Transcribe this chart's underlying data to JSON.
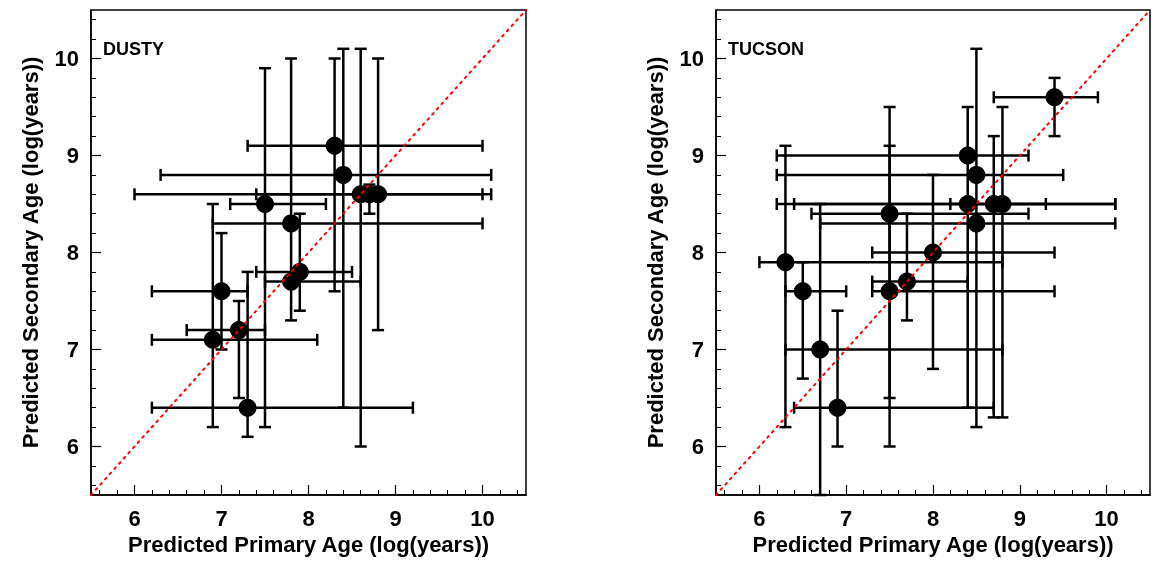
{
  "chart_data": [
    {
      "type": "scatter",
      "annotations": [
        "DUSTY"
      ],
      "xlabel": "Predicted Primary Age (log(years))",
      "ylabel": "Predicted Secondary Age (log(years))",
      "xlim": [
        5.5,
        10.5
      ],
      "ylim": [
        5.5,
        10.5
      ],
      "xticks": [
        6,
        7,
        8,
        9,
        10
      ],
      "yticks": [
        6,
        7,
        8,
        9,
        10
      ],
      "grid": false,
      "series": [
        {
          "color": "#000000",
          "marker": "circle",
          "x": [
            8.3,
            8.4,
            8.6,
            8.7,
            8.8,
            7.5,
            7.8,
            7.8,
            7.9,
            7.0,
            7.2,
            6.9,
            7.3
          ],
          "values": [
            9.1,
            8.8,
            8.6,
            8.6,
            8.6,
            8.5,
            8.3,
            7.7,
            7.8,
            7.6,
            7.2,
            7.1,
            6.4
          ],
          "errors": [
            [
              7.6,
              10.0
            ],
            [
              6.4,
              10.1
            ],
            [
              6.0,
              10.1
            ],
            [
              8.4,
              8.7
            ],
            [
              7.2,
              10.0
            ],
            [
              6.2,
              9.9
            ],
            [
              7.3,
              10.0
            ],
            null,
            [
              7.4,
              8.4
            ],
            [
              7.0,
              8.2
            ],
            [
              6.5,
              7.5
            ],
            [
              6.2,
              8.5
            ],
            [
              6.1,
              7.8
            ]
          ],
          "xerrors": [
            [
              7.3,
              10.0
            ],
            [
              6.3,
              10.1
            ],
            [
              6.0,
              10.1
            ],
            [
              7.4,
              10.0
            ],
            null,
            [
              7.1,
              8.2
            ],
            [
              6.9,
              10.0
            ],
            [
              7.5,
              8.6
            ],
            [
              7.4,
              8.5
            ],
            [
              6.2,
              7.3
            ],
            [
              6.6,
              7.5
            ],
            [
              6.2,
              8.1
            ],
            [
              6.2,
              9.2
            ]
          ]
        },
        {
          "type": "line",
          "color": "#ff0000",
          "marker": "none",
          "line_style": "dotted",
          "x": [
            5.5,
            10.5
          ],
          "values": [
            5.5,
            10.5
          ]
        }
      ]
    },
    {
      "type": "scatter",
      "annotations": [
        "TUCSON"
      ],
      "xlabel": "Predicted Primary Age (log(years))",
      "ylabel": "Predicted Secondary Age (log(years))",
      "xlim": [
        5.5,
        10.5
      ],
      "ylim": [
        5.5,
        10.5
      ],
      "xticks": [
        6,
        7,
        8,
        9,
        10
      ],
      "yticks": [
        6,
        7,
        8,
        9,
        10
      ],
      "grid": false,
      "series": [
        {
          "color": "#000000",
          "marker": "circle",
          "x": [
            9.4,
            8.4,
            8.5,
            8.4,
            8.7,
            8.8,
            8.5,
            7.5,
            8.0,
            7.7,
            7.5,
            6.3,
            6.5,
            6.7,
            6.9
          ],
          "values": [
            9.6,
            9.0,
            8.8,
            8.5,
            8.5,
            8.5,
            8.3,
            8.4,
            8.0,
            7.7,
            7.6,
            7.9,
            7.6,
            7.0,
            6.4
          ],
          "errors": [
            [
              9.2,
              9.8
            ],
            [
              6.4,
              9.5
            ],
            [
              6.2,
              10.1
            ],
            null,
            [
              6.3,
              9.2
            ],
            [
              6.3,
              9.5
            ],
            null,
            [
              6.5,
              9.5
            ],
            [
              6.8,
              8.8
            ],
            [
              7.3,
              8.4
            ],
            [
              6.0,
              9.1
            ],
            [
              6.2,
              9.1
            ],
            [
              6.7,
              7.9
            ],
            [
              5.5,
              8.5
            ],
            [
              6.0,
              7.4
            ]
          ],
          "xerrors": [
            [
              8.7,
              9.9
            ],
            [
              6.2,
              9.1
            ],
            [
              6.2,
              9.5
            ],
            [
              8.2,
              9.3
            ],
            [
              6.2,
              10.1
            ],
            [
              6.4,
              10.1
            ],
            [
              6.7,
              10.1
            ],
            [
              6.6,
              9.1
            ],
            [
              7.3,
              9.4
            ],
            [
              7.3,
              8.4
            ],
            [
              7.3,
              9.4
            ],
            [
              6.0,
              8.8
            ],
            [
              6.3,
              7.0
            ],
            [
              6.3,
              8.8
            ],
            [
              6.4,
              8.7
            ]
          ]
        },
        {
          "type": "line",
          "color": "#ff0000",
          "marker": "none",
          "line_style": "dotted",
          "x": [
            5.5,
            10.5
          ],
          "values": [
            5.5,
            10.5
          ]
        }
      ]
    }
  ]
}
